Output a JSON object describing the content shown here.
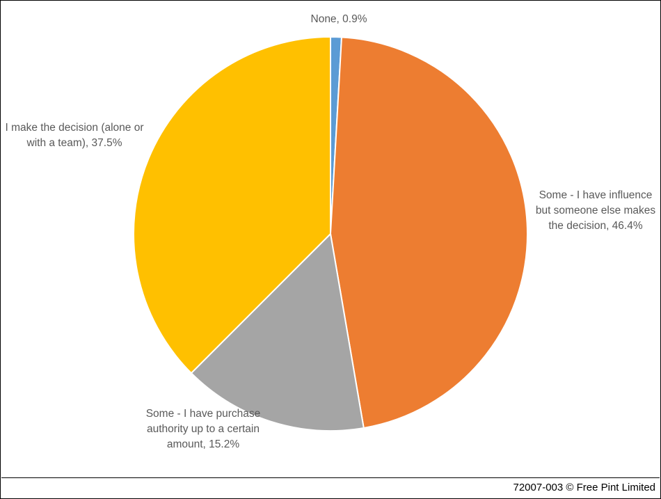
{
  "chart_data": {
    "type": "pie",
    "categories": [
      "None",
      "Some - I have influence but someone else makes the decision",
      "Some - I have purchase authority up to a certain amount",
      "I make the decision (alone or with a team)"
    ],
    "values": [
      0.9,
      46.4,
      15.2,
      37.5
    ],
    "unit": "%",
    "colors": [
      "#5b9bd5",
      "#ed7d31",
      "#a5a5a5",
      "#ffc000"
    ],
    "data_labels": [
      "None, 0.9%",
      "Some - I have influence but someone else makes the decision, 46.4%",
      "Some - I have purchase authority up to a certain amount, 15.2%",
      "I make the decision (alone or with a team), 37.5%"
    ],
    "start_angle": "12 o'clock",
    "direction": "clockwise",
    "legend": "none"
  },
  "footer": {
    "credit": "72007-003 © Free Pint Limited"
  }
}
